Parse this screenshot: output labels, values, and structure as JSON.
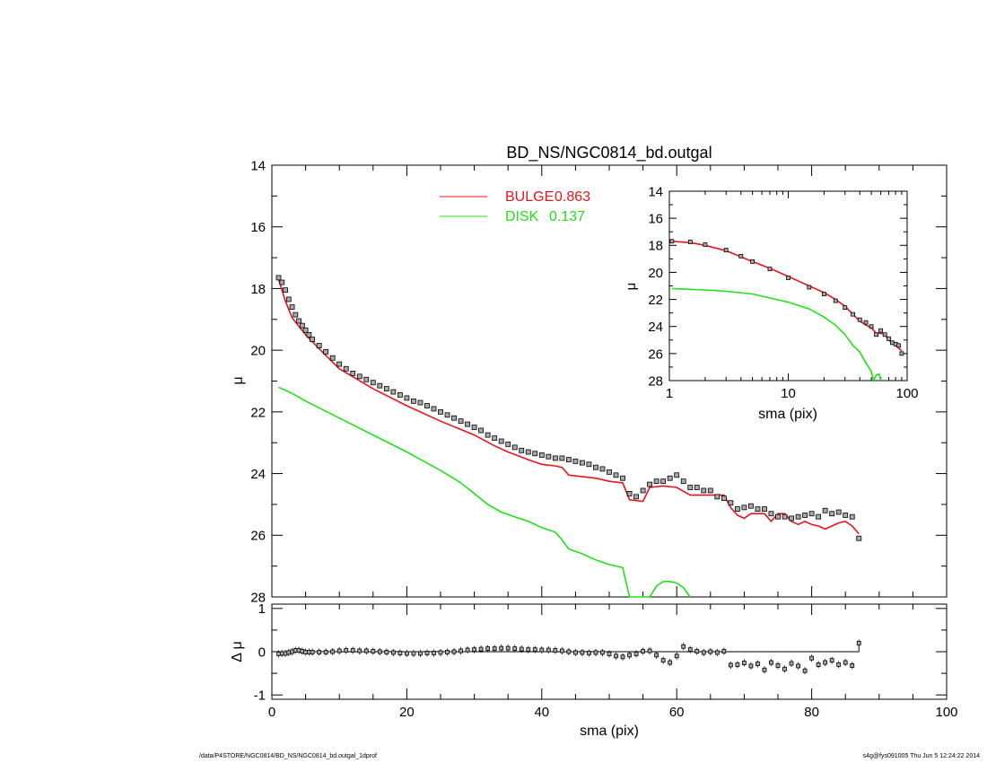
{
  "chart_data": [
    {
      "panel": "main",
      "type": "line",
      "title": "BD_NS/NGC0814_bd.outgal",
      "ylabel": "μ",
      "xlim": [
        0,
        100
      ],
      "ylim": [
        28,
        14
      ],
      "y_inverted": true,
      "x_ticks": [
        0,
        20,
        40,
        60,
        80,
        100
      ],
      "y_ticks": [
        14,
        16,
        18,
        20,
        22,
        24,
        26,
        28
      ],
      "legend": {
        "placement": "top-center",
        "entries": [
          {
            "label": "BULGE",
            "value": "0.863",
            "color": "#e8141b"
          },
          {
            "label": "DISK",
            "value": "0.137",
            "color": "#22e01a"
          }
        ]
      },
      "series": [
        {
          "name": "BULGE",
          "color": "#e8141b",
          "x": [
            1.0,
            2,
            3,
            5,
            7,
            10,
            15,
            20,
            25,
            30,
            33,
            35,
            38,
            40,
            42,
            43,
            44,
            48,
            50,
            52,
            53,
            55,
            56,
            58,
            60,
            62,
            65,
            67,
            68,
            69,
            70,
            71,
            72,
            73,
            74,
            75,
            76,
            77,
            78,
            79,
            80,
            81,
            82,
            83,
            84,
            85,
            86,
            87
          ],
          "y": [
            17.7,
            18.4,
            18.95,
            19.5,
            19.95,
            20.6,
            21.25,
            21.8,
            22.3,
            22.75,
            23.1,
            23.3,
            23.55,
            23.7,
            23.75,
            23.8,
            24.05,
            24.15,
            24.25,
            24.3,
            24.85,
            24.9,
            24.45,
            24.4,
            24.45,
            24.7,
            24.7,
            24.7,
            25.1,
            25.35,
            25.45,
            25.3,
            25.3,
            25.3,
            25.55,
            25.3,
            25.3,
            25.55,
            25.65,
            25.55,
            25.65,
            25.7,
            25.8,
            25.7,
            25.6,
            25.55,
            25.7,
            25.95
          ]
        },
        {
          "name": "DISK",
          "color": "#22e01a",
          "x": [
            1.0,
            3,
            5,
            10,
            15,
            20,
            25,
            28,
            30,
            32,
            34,
            36,
            38,
            40,
            42,
            43,
            44,
            46,
            48,
            50,
            52,
            53,
            56,
            57,
            58,
            59,
            60,
            61,
            62
          ],
          "y": [
            21.2,
            21.4,
            21.65,
            22.2,
            22.75,
            23.3,
            23.9,
            24.3,
            24.65,
            25.0,
            25.25,
            25.4,
            25.55,
            25.75,
            25.9,
            26.15,
            26.45,
            26.6,
            26.8,
            26.95,
            27.05,
            28.2,
            28.2,
            27.65,
            27.5,
            27.5,
            27.55,
            27.7,
            28.0
          ]
        },
        {
          "name": "",
          "color": "#000000",
          "marker": "square",
          "x": [
            1.0,
            1.5,
            2,
            2.5,
            3,
            3.5,
            4,
            4.5,
            5,
            5.5,
            6,
            7,
            8,
            9,
            10,
            11,
            12,
            13,
            14,
            15,
            16,
            17,
            18,
            19,
            20,
            21,
            22,
            23,
            24,
            25,
            26,
            27,
            28,
            29,
            30,
            31,
            32,
            33,
            34,
            35,
            36,
            37,
            38,
            39,
            40,
            41,
            42,
            43,
            44,
            45,
            46,
            47,
            48,
            49,
            50,
            51,
            52,
            53,
            54,
            55,
            56,
            57,
            58,
            59,
            60,
            61,
            62,
            63,
            64,
            65,
            66,
            67,
            68,
            69,
            70,
            71,
            72,
            73,
            74,
            75,
            76,
            77,
            78,
            79,
            80,
            81,
            82,
            83,
            84,
            85,
            86,
            87
          ],
          "y": [
            17.65,
            17.8,
            18.05,
            18.35,
            18.6,
            18.85,
            19.05,
            19.2,
            19.35,
            19.5,
            19.65,
            19.85,
            20.05,
            20.25,
            20.45,
            20.6,
            20.75,
            20.85,
            20.95,
            21.05,
            21.15,
            21.25,
            21.35,
            21.45,
            21.55,
            21.65,
            21.7,
            21.8,
            21.9,
            22.0,
            22.1,
            22.2,
            22.3,
            22.4,
            22.5,
            22.6,
            22.75,
            22.85,
            22.95,
            23.05,
            23.15,
            23.25,
            23.3,
            23.35,
            23.4,
            23.45,
            23.5,
            23.5,
            23.55,
            23.6,
            23.65,
            23.7,
            23.8,
            23.85,
            23.95,
            24.05,
            24.15,
            24.65,
            24.75,
            24.55,
            24.35,
            24.25,
            24.25,
            24.15,
            24.05,
            24.25,
            24.45,
            24.45,
            24.55,
            24.55,
            24.75,
            24.8,
            24.95,
            25.15,
            25.1,
            25.05,
            25.15,
            25.15,
            25.3,
            25.4,
            25.4,
            25.45,
            25.4,
            25.35,
            25.3,
            25.4,
            25.2,
            25.3,
            25.25,
            25.35,
            25.4,
            26.1
          ]
        }
      ]
    },
    {
      "panel": "inset",
      "type": "line",
      "xlabel": "sma (pix)",
      "ylabel": "μ",
      "x_scale": "log",
      "xlim": [
        1,
        100
      ],
      "ylim": [
        28,
        14
      ],
      "y_inverted": true,
      "x_ticks": [
        1,
        10,
        100
      ],
      "y_ticks": [
        14,
        16,
        18,
        20,
        22,
        24,
        26,
        28
      ],
      "series": [
        {
          "name": "BULGE",
          "color": "#e8141b",
          "x": [
            1.05,
            1.5,
            2,
            3,
            5,
            7,
            10,
            15,
            20,
            25,
            30,
            35,
            40,
            45,
            50,
            55,
            60,
            65,
            70,
            80,
            90
          ],
          "y": [
            17.7,
            17.8,
            18.0,
            18.4,
            19.2,
            19.7,
            20.3,
            21.0,
            21.5,
            22.0,
            22.5,
            23.1,
            23.6,
            23.9,
            24.1,
            24.5,
            24.5,
            24.6,
            25.0,
            25.4,
            25.8
          ]
        },
        {
          "name": "DISK",
          "color": "#22e01a",
          "x": [
            1.05,
            2,
            3,
            5,
            10,
            15,
            20,
            25,
            30,
            35,
            40,
            45,
            50,
            52,
            55,
            58,
            60
          ],
          "y": [
            21.2,
            21.3,
            21.4,
            21.6,
            22.2,
            22.7,
            23.3,
            23.9,
            24.6,
            25.4,
            25.9,
            26.7,
            27.3,
            28.0,
            27.6,
            27.5,
            28.0
          ]
        },
        {
          "name": "",
          "color": "#000000",
          "marker": "square",
          "x": [
            1.05,
            1.5,
            2,
            3,
            4,
            5,
            7,
            10,
            15,
            20,
            25,
            30,
            35,
            40,
            45,
            50,
            55,
            60,
            65,
            70,
            75,
            80,
            85,
            90
          ],
          "y": [
            17.7,
            17.75,
            17.95,
            18.35,
            18.8,
            19.2,
            19.75,
            20.4,
            21.1,
            21.6,
            22.1,
            22.6,
            23.1,
            23.5,
            23.7,
            24.0,
            24.6,
            24.3,
            24.6,
            24.9,
            25.2,
            25.3,
            25.4,
            26.0
          ]
        }
      ]
    },
    {
      "panel": "residual",
      "type": "scatter",
      "xlabel": "sma (pix)",
      "ylabel": "Δ μ",
      "xlim": [
        0,
        100
      ],
      "ylim": [
        -1.1,
        1.1
      ],
      "x_ticks": [
        0,
        20,
        40,
        60,
        80,
        100
      ],
      "y_ticks": [
        -1,
        0,
        1
      ],
      "series": [
        {
          "name": "",
          "color": "#000000",
          "marker": "square",
          "x": [
            1.0,
            1.5,
            2,
            2.5,
            3,
            3.5,
            4,
            4.5,
            5,
            5.5,
            6,
            7,
            8,
            9,
            10,
            11,
            12,
            13,
            14,
            15,
            16,
            17,
            18,
            19,
            20,
            21,
            22,
            23,
            24,
            25,
            26,
            27,
            28,
            29,
            30,
            31,
            32,
            33,
            34,
            35,
            36,
            37,
            38,
            39,
            40,
            41,
            42,
            43,
            44,
            45,
            46,
            47,
            48,
            49,
            50,
            51,
            52,
            53,
            54,
            55,
            56,
            57,
            58,
            59,
            60,
            61,
            62,
            63,
            64,
            65,
            66,
            67,
            68,
            69,
            70,
            71,
            72,
            73,
            74,
            75,
            76,
            77,
            78,
            79,
            80,
            81,
            82,
            83,
            84,
            85,
            86,
            87
          ],
          "y": [
            -0.05,
            -0.04,
            -0.04,
            -0.02,
            0.0,
            0.03,
            0.03,
            0.01,
            -0.01,
            -0.01,
            -0.01,
            -0.01,
            -0.01,
            0.0,
            0.02,
            0.03,
            0.03,
            0.02,
            0.02,
            0.01,
            0.0,
            -0.01,
            -0.02,
            -0.03,
            -0.04,
            -0.04,
            -0.04,
            -0.03,
            -0.03,
            -0.02,
            -0.01,
            0.0,
            0.02,
            0.04,
            0.05,
            0.06,
            0.07,
            0.07,
            0.08,
            0.08,
            0.07,
            0.06,
            0.05,
            0.05,
            0.04,
            0.04,
            0.03,
            0.02,
            0.0,
            -0.02,
            -0.02,
            -0.03,
            -0.02,
            -0.02,
            -0.05,
            -0.1,
            -0.12,
            -0.08,
            -0.05,
            0.01,
            0.02,
            -0.08,
            -0.2,
            -0.25,
            -0.1,
            0.12,
            0.05,
            0.01,
            -0.02,
            0.0,
            -0.02,
            0.01,
            -0.31,
            -0.3,
            -0.26,
            -0.33,
            -0.28,
            -0.42,
            -0.25,
            -0.32,
            -0.4,
            -0.27,
            -0.33,
            -0.44,
            -0.15,
            -0.3,
            -0.25,
            -0.2,
            -0.3,
            -0.25,
            -0.32,
            0.2
          ]
        }
      ]
    }
  ],
  "footer": {
    "left": "/data/P4STORE/NGC0814/BD_NS/NGC0814_bd.outgal_1dprof",
    "right": "s4g@fys091005  Thu Jun  5 12:24:22 2014"
  }
}
